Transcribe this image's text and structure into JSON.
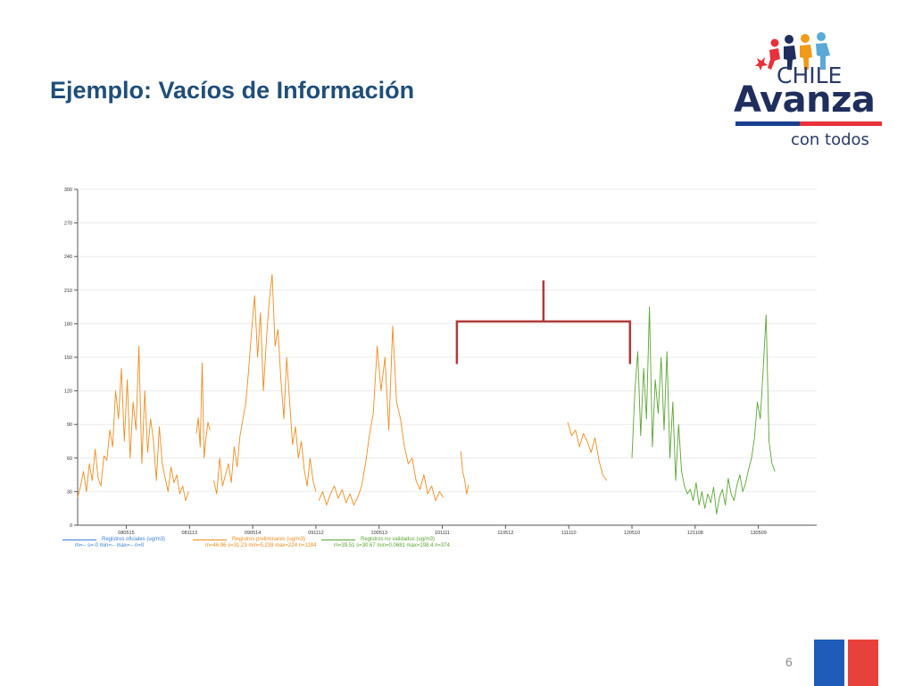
{
  "slide": {
    "title": "Ejemplo: Vacíos de Información",
    "page_number": "6"
  },
  "logo": {
    "word1": "CHILE",
    "word2": "Avanza",
    "tagline": "con todos",
    "colors": {
      "blue": "#1a3f8f",
      "red": "#e8313a",
      "navy": "#1f2e5c",
      "light_blue": "#5aa9d6",
      "orange": "#f29a1a"
    }
  },
  "flag_colors": {
    "left": "#1f5bb8",
    "right": "#e8413c"
  },
  "colors": {
    "title": "#1f4e79",
    "bracket": "#b03a3a"
  },
  "chart_data": {
    "type": "line",
    "title": "",
    "xlabel": "",
    "ylabel": "",
    "ylim": [
      0,
      300
    ],
    "yticks": [
      0,
      30,
      60,
      90,
      120,
      150,
      180,
      210,
      240,
      270,
      300
    ],
    "xlim": [
      0,
      760
    ],
    "xticks": [
      {
        "pos": 50,
        "label": "080515"
      },
      {
        "pos": 115,
        "label": "081113"
      },
      {
        "pos": 180,
        "label": "090514"
      },
      {
        "pos": 245,
        "label": "091112"
      },
      {
        "pos": 310,
        "label": "100513"
      },
      {
        "pos": 375,
        "label": "101111"
      },
      {
        "pos": 440,
        "label": "110512"
      },
      {
        "pos": 505,
        "label": "111110"
      },
      {
        "pos": 570,
        "label": "120510"
      },
      {
        "pos": 635,
        "label": "121108"
      },
      {
        "pos": 700,
        "label": "130509"
      }
    ],
    "grid": true,
    "legend_position": "bottom",
    "annotation": {
      "type": "bracket",
      "x_range": [
        390,
        568
      ],
      "y_range": [
        144,
        182
      ]
    },
    "series": [
      {
        "name": "Registros oficiales (ug/m3)",
        "stats": "m=-- s=-0 min=-- max=-- n=0",
        "color": "#3b7fd4",
        "segments": []
      },
      {
        "name": "Registros preliminares (ug/m3)",
        "stats": "m=46.96 s=31.23 min=5.238 max=224 n=1184",
        "color": "#f08c1e",
        "segments": [
          {
            "x": [
              0,
              3,
              6,
              9,
              12,
              15,
              18,
              21,
              24,
              27,
              30,
              33,
              36,
              39,
              42,
              45,
              48,
              51,
              54,
              57,
              60,
              63,
              66,
              69,
              72,
              75,
              78,
              81,
              84,
              87,
              90,
              93,
              96,
              99,
              102,
              105,
              108,
              111,
              114
            ],
            "y": [
              25,
              35,
              48,
              30,
              55,
              40,
              68,
              42,
              35,
              62,
              58,
              85,
              70,
              120,
              95,
              140,
              75,
              130,
              60,
              110,
              85,
              160,
              55,
              120,
              65,
              95,
              75,
              40,
              88,
              55,
              42,
              30,
              52,
              38,
              45,
              28,
              35,
              22,
              30
            ]
          },
          {
            "x": [
              122,
              124,
              126,
              128,
              130,
              132,
              134,
              136
            ],
            "y": [
              82,
              96,
              70,
              145,
              60,
              78,
              92,
              85
            ]
          },
          {
            "x": [
              140,
              143,
              146,
              149,
              152,
              155,
              158,
              161,
              164,
              167,
              170,
              173,
              176,
              179,
              182,
              185,
              188,
              191,
              194,
              197,
              200,
              203,
              206,
              209,
              212,
              215,
              218,
              221,
              224,
              227,
              230,
              233,
              236,
              239,
              242,
              245
            ],
            "y": [
              40,
              28,
              60,
              35,
              45,
              55,
              38,
              70,
              52,
              80,
              95,
              110,
              140,
              175,
              205,
              150,
              190,
              120,
              165,
              200,
              224,
              160,
              175,
              130,
              95,
              150,
              110,
              72,
              88,
              60,
              75,
              50,
              35,
              60,
              40,
              30
            ]
          },
          {
            "x": [
              248,
              252,
              256,
              260,
              264,
              268,
              272,
              276,
              280,
              284,
              288,
              292,
              296,
              300,
              304,
              308,
              312,
              316,
              320,
              324,
              328,
              332,
              336,
              340,
              344,
              348,
              352,
              356,
              360,
              364,
              368,
              372,
              376
            ],
            "y": [
              22,
              30,
              18,
              28,
              35,
              24,
              32,
              20,
              28,
              18,
              25,
              35,
              55,
              80,
              100,
              160,
              120,
              150,
              85,
              178,
              110,
              95,
              70,
              55,
              60,
              40,
              32,
              45,
              28,
              35,
              22,
              30,
              25
            ]
          },
          {
            "x": [
              394,
              396,
              398,
              400,
              402
            ],
            "y": [
              66,
              48,
              40,
              28,
              36
            ]
          },
          {
            "x": [
              504,
              508,
              512,
              516,
              520,
              524,
              528,
              532,
              536,
              540,
              544
            ],
            "y": [
              92,
              80,
              85,
              70,
              82,
              75,
              65,
              78,
              58,
              45,
              40
            ]
          }
        ]
      },
      {
        "name": "Registros no validados (ug/m3)",
        "stats": "m=39.51 s=30.67 min=0.0681 max=198.4 n=374",
        "color": "#5aa532",
        "segments": [
          {
            "x": [
              570,
              573,
              576,
              579,
              582,
              585,
              588,
              591,
              594,
              597,
              600,
              603,
              606,
              609,
              612,
              615,
              618,
              621,
              624,
              627,
              630,
              633,
              636,
              639,
              642,
              645,
              648,
              651,
              654,
              657,
              660,
              663,
              666,
              669,
              672,
              675,
              678,
              681,
              684,
              687,
              690,
              693,
              696,
              699,
              702,
              705,
              708,
              711,
              714,
              717
            ],
            "y": [
              60,
              120,
              155,
              80,
              140,
              95,
              195,
              70,
              130,
              100,
              150,
              85,
              155,
              60,
              110,
              40,
              90,
              48,
              35,
              28,
              32,
              22,
              38,
              18,
              30,
              15,
              28,
              20,
              34,
              10,
              25,
              32,
              18,
              42,
              28,
              22,
              36,
              45,
              30,
              38,
              50,
              60,
              78,
              110,
              95,
              140,
              188,
              75,
              55,
              48
            ]
          }
        ]
      }
    ]
  }
}
